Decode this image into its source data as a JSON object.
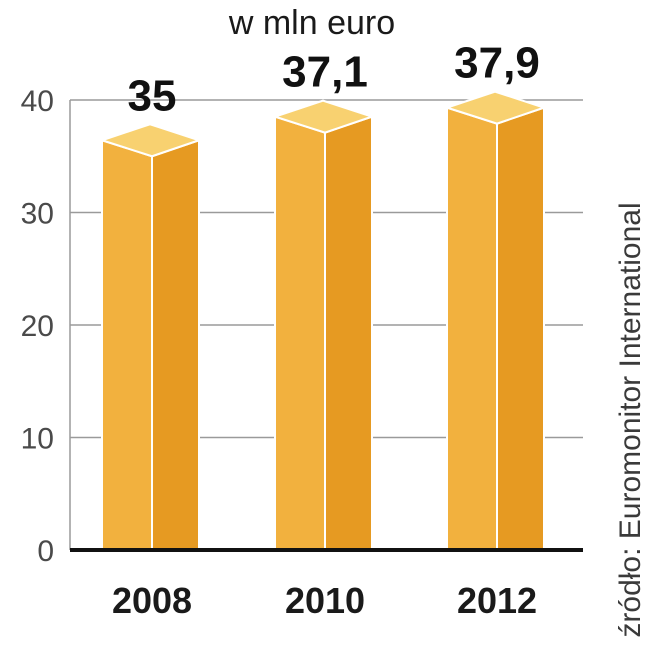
{
  "chart_data": {
    "type": "bar",
    "style": "3d-box",
    "categories": [
      "2008",
      "2010",
      "2012"
    ],
    "values": [
      35,
      37.1,
      37.9
    ],
    "value_labels": [
      "35",
      "37,1",
      "37,9"
    ],
    "unit_label": "w mln euro",
    "ylim": [
      0,
      40
    ],
    "yticks": [
      0,
      10,
      20,
      30,
      40
    ],
    "grid": true,
    "source": "źródło: Euromonitor International",
    "colors": {
      "front": "#F2B13E",
      "side": "#E69A22",
      "top": "#F8D170",
      "grid": "#9a9a9a",
      "axis": "#111111"
    }
  }
}
